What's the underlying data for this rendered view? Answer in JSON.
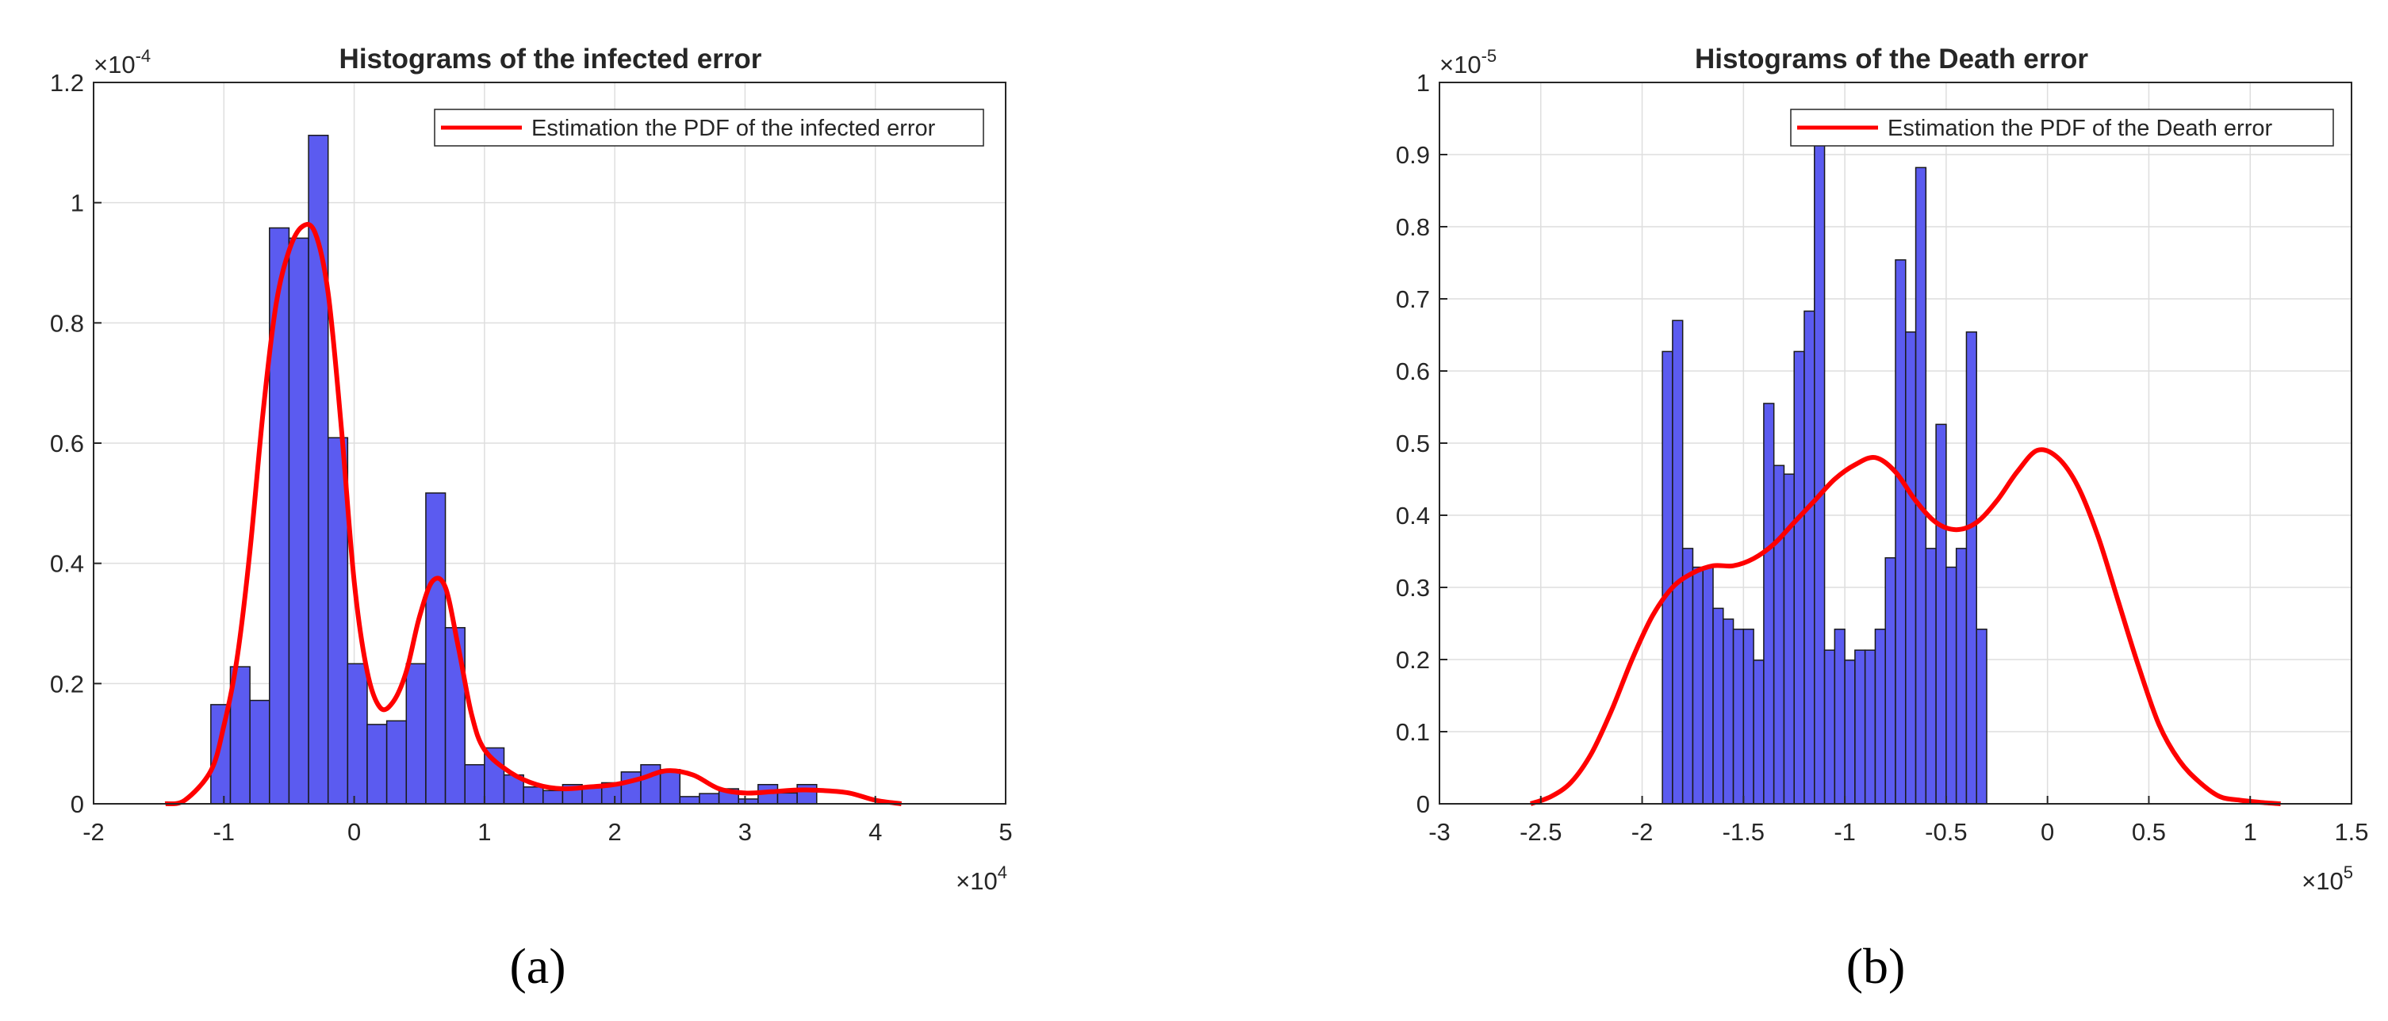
{
  "chart_data": [
    {
      "type": "bar",
      "panel_label": "(a)",
      "title": "Histograms of the infected error",
      "xlim": [
        -20000,
        50000
      ],
      "ylim": [
        0,
        0.00012
      ],
      "x_ticks": [
        -20000,
        -10000,
        0,
        10000,
        20000,
        30000,
        40000,
        50000
      ],
      "x_tick_labels": [
        "-2",
        "-1",
        "0",
        "1",
        "2",
        "3",
        "4",
        "5"
      ],
      "x_exponent": "×10^4",
      "y_ticks": [
        0,
        2e-05,
        4e-05,
        6e-05,
        8e-05,
        0.0001,
        0.00012
      ],
      "y_tick_labels": [
        "0",
        "0.2",
        "0.4",
        "0.6",
        "0.8",
        "1",
        "1.2"
      ],
      "y_exponent": "×10^-4",
      "grid": true,
      "legend_position": "top-right",
      "series": [
        {
          "type": "histogram",
          "bin_start": -11000,
          "bin_width": 1500,
          "values": [
            1.65e-05,
            2.28e-05,
            1.72e-05,
            9.58e-05,
            9.41e-05,
            0.0001112,
            6.09e-05,
            2.33e-05,
            1.32e-05,
            1.38e-05,
            2.33e-05,
            5.17e-05,
            2.93e-05,
            6.5e-06,
            9.3e-06,
            4.8e-06,
            2.8e-06,
            2.2e-06,
            3.2e-06,
            2.8e-06,
            3.5e-06,
            5.3e-06,
            6.5e-06,
            5.7e-06,
            1.2e-06,
            1.7e-06,
            2.5e-06,
            8e-07,
            3.2e-06,
            1.8e-06,
            3.2e-06
          ],
          "color": "#5b5bf0"
        },
        {
          "type": "line",
          "name": "Estimation the PDF of the infected error",
          "x": [
            -14500,
            -13000,
            -11000,
            -10000,
            -9000,
            -8000,
            -7000,
            -6000,
            -5000,
            -4000,
            -3000,
            -2000,
            -1000,
            0,
            1000,
            2000,
            3000,
            4000,
            5000,
            6000,
            7000,
            8000,
            9000,
            10000,
            12000,
            14000,
            16000,
            18000,
            20000,
            22000,
            24000,
            26000,
            28000,
            30000,
            32000,
            34000,
            36000,
            38000,
            40000,
            42000
          ],
          "y": [
            0,
            6e-07,
            5.5e-06,
            1.3e-05,
            2.4e-05,
            4.2e-05,
            6.5e-05,
            8.3e-05,
            9.2e-05,
            9.6e-05,
            9.5e-05,
            8.5e-05,
            6.3e-05,
            3.7e-05,
            2.2e-05,
            1.6e-05,
            1.7e-05,
            2.2e-05,
            3.1e-05,
            3.7e-05,
            3.6e-05,
            2.6e-05,
            1.5e-05,
            9e-06,
            5.2e-06,
            3.2e-06,
            2.5e-06,
            2.8e-06,
            3.2e-06,
            4.2e-06,
            5.5e-06,
            4.8e-06,
            2.5e-06,
            1.8e-06,
            2e-06,
            2.3e-06,
            2.2e-06,
            1.8e-06,
            6e-07,
            0
          ],
          "color": "#ff0000"
        }
      ]
    },
    {
      "type": "bar",
      "panel_label": "(b)",
      "title": "Histograms of the Death error",
      "xlim": [
        -300000,
        150000
      ],
      "ylim": [
        0,
        1e-05
      ],
      "x_ticks": [
        -300000,
        -250000,
        -200000,
        -150000,
        -100000,
        -50000,
        0,
        50000,
        100000,
        150000
      ],
      "x_tick_labels": [
        "-3",
        "-2.5",
        "-2",
        "-1.5",
        "-1",
        "-0.5",
        "0",
        "0.5",
        "1",
        "1.5"
      ],
      "x_exponent": "×10^5",
      "y_ticks": [
        0,
        1e-06,
        2e-06,
        3e-06,
        4e-06,
        5e-06,
        6e-06,
        7e-06,
        8e-06,
        9e-06,
        1e-05
      ],
      "y_tick_labels": [
        "0",
        "0.1",
        "0.2",
        "0.3",
        "0.4",
        "0.5",
        "0.6",
        "0.7",
        "0.8",
        "0.9",
        "1"
      ],
      "y_exponent": "×10^-5",
      "grid": true,
      "legend_position": "top-right",
      "series": [
        {
          "type": "histogram",
          "bin_start": -190000,
          "bin_width": 5000,
          "values": [
            6.27e-06,
            6.7e-06,
            3.54e-06,
            3.28e-06,
            3.28e-06,
            2.71e-06,
            2.56e-06,
            2.42e-06,
            2.42e-06,
            1.99e-06,
            5.55e-06,
            4.69e-06,
            4.57e-06,
            6.27e-06,
            6.83e-06,
            9.18e-06,
            2.13e-06,
            2.42e-06,
            1.99e-06,
            2.13e-06,
            2.13e-06,
            2.42e-06,
            3.41e-06,
            7.54e-06,
            6.54e-06,
            8.82e-06,
            3.54e-06,
            5.26e-06,
            3.28e-06,
            3.54e-06,
            6.54e-06,
            2.42e-06
          ],
          "color": "#5b5bf0"
        },
        {
          "type": "line",
          "name": "Estimation the PDF of the Death error",
          "x": [
            -255000,
            -245000,
            -235000,
            -225000,
            -215000,
            -205000,
            -195000,
            -185000,
            -175000,
            -165000,
            -155000,
            -145000,
            -135000,
            -125000,
            -115000,
            -105000,
            -95000,
            -85000,
            -75000,
            -65000,
            -55000,
            -45000,
            -35000,
            -25000,
            -15000,
            -5000,
            5000,
            15000,
            25000,
            35000,
            45000,
            55000,
            65000,
            75000,
            85000,
            95000,
            105000,
            115000
          ],
          "y": [
            0,
            1e-07,
            3e-07,
            7e-07,
            1.3e-06,
            2e-06,
            2.6e-06,
            3e-06,
            3.2e-06,
            3.3e-06,
            3.3e-06,
            3.4e-06,
            3.6e-06,
            3.9e-06,
            4.2e-06,
            4.5e-06,
            4.7e-06,
            4.8e-06,
            4.6e-06,
            4.2e-06,
            3.9e-06,
            3.8e-06,
            3.9e-06,
            4.2e-06,
            4.6e-06,
            4.9e-06,
            4.8e-06,
            4.4e-06,
            3.7e-06,
            2.8e-06,
            1.9e-06,
            1.1e-06,
            6e-07,
            3e-07,
            1e-07,
            5e-08,
            2e-08,
            0
          ],
          "color": "#ff0000"
        }
      ]
    }
  ]
}
